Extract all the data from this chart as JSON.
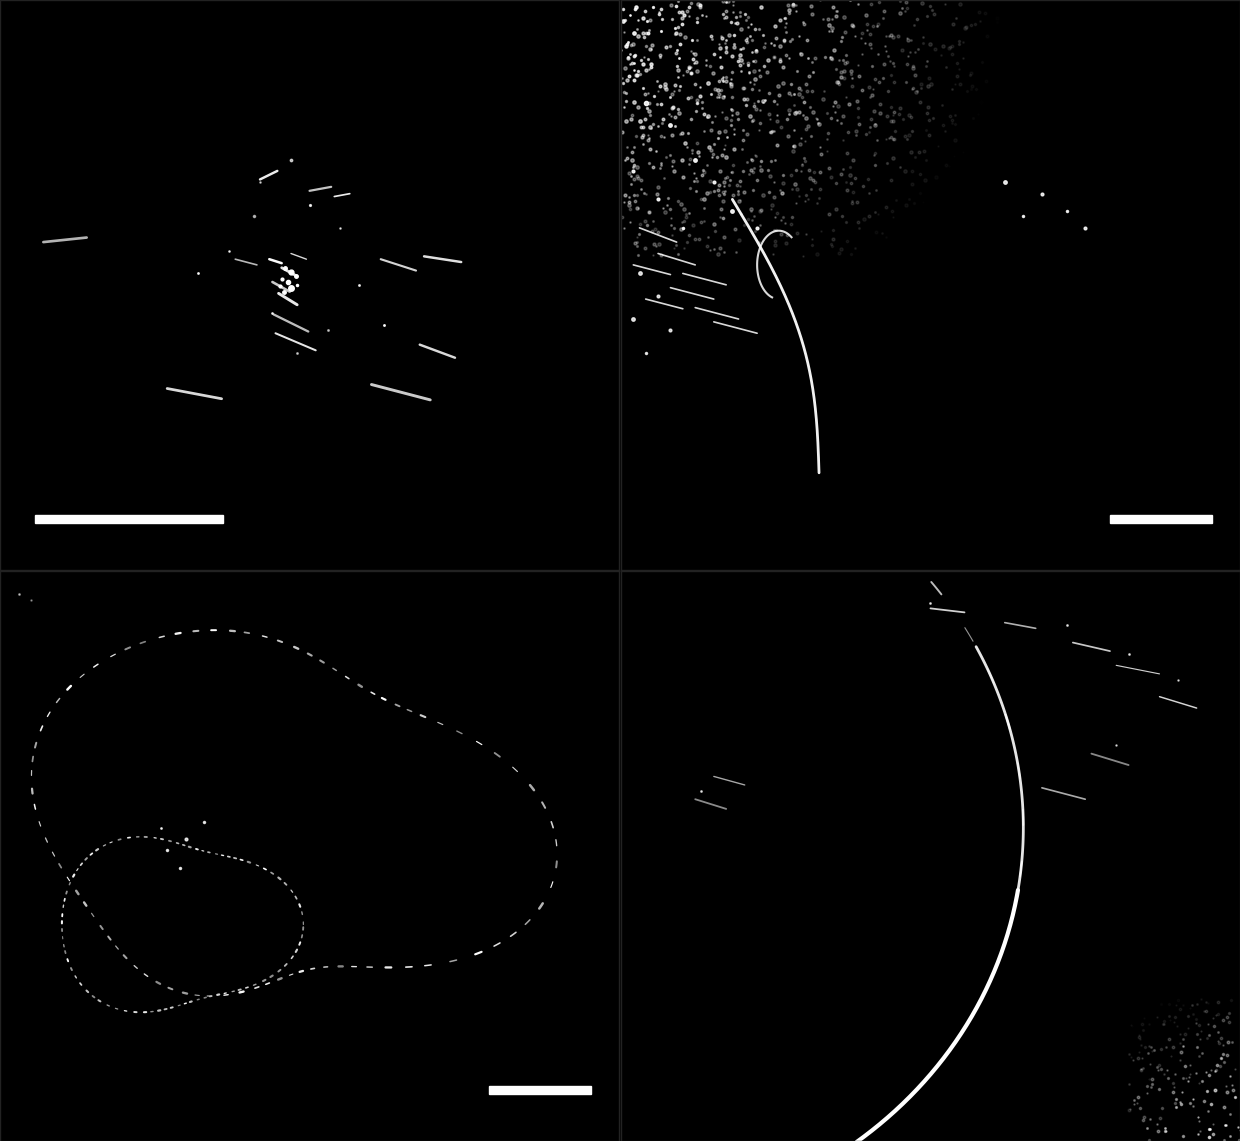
{
  "background_color": "#000000",
  "fig_width": 12.4,
  "fig_height": 11.41,
  "dpi": 100,
  "scale_bar_color": "#ffffff",
  "seed": 42
}
